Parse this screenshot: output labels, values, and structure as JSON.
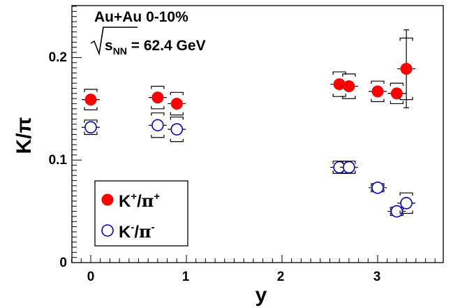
{
  "chart_data": {
    "type": "scatter",
    "xlabel": "y",
    "ylabel": "K/π",
    "xlim": [
      -0.2,
      3.8
    ],
    "ylim": [
      0,
      0.25
    ],
    "x_ticks": [
      {
        "value": 0,
        "label": "0"
      },
      {
        "value": 1,
        "label": "1"
      },
      {
        "value": 2,
        "label": "2"
      },
      {
        "value": 3,
        "label": "3"
      }
    ],
    "y_ticks": [
      {
        "value": 0,
        "label": "0"
      },
      {
        "value": 0.1,
        "label": "0.1"
      },
      {
        "value": 0.2,
        "label": "0.2"
      }
    ],
    "annotation": {
      "line1": "Au+Au 0-10%",
      "sqrt_s": "s",
      "sqrt_sub": "NN",
      "energy": " = 62.4 GeV"
    },
    "legend_position": "bottom-left",
    "series": [
      {
        "name": "K+/π+",
        "legend": {
          "base": "K",
          "sup1": "+",
          "sep": "/",
          "pi": "π",
          "sup2": "+"
        },
        "marker": "filled-circle",
        "color": "#ff0000",
        "x": [
          0,
          0.7,
          0.9,
          2.6,
          2.7,
          3.0,
          3.2,
          3.3
        ],
        "y": [
          0.159,
          0.161,
          0.155,
          0.174,
          0.172,
          0.167,
          0.165,
          0.189
        ],
        "stat_err": [
          0.004,
          0.004,
          0.004,
          0.005,
          0.005,
          0.004,
          0.005,
          0.038
        ],
        "sys_err": [
          0.01,
          0.011,
          0.011,
          0.012,
          0.012,
          0.01,
          0.01,
          0.03
        ]
      },
      {
        "name": "K-/π-",
        "legend": {
          "base": "K",
          "sup1": "-",
          "sep": "/",
          "pi": "π",
          "sup2": "-"
        },
        "marker": "open-circle",
        "color": "#0000cc",
        "x": [
          0,
          0.7,
          0.9,
          2.6,
          2.7,
          3.0,
          3.2,
          3.3
        ],
        "y": [
          0.132,
          0.134,
          0.13,
          0.093,
          0.093,
          0.073,
          0.05,
          0.058
        ],
        "stat_err": [
          0.003,
          0.003,
          0.003,
          0.004,
          0.004,
          0.003,
          0.003,
          0.005
        ],
        "sys_err": [
          0.007,
          0.012,
          0.012,
          0.006,
          0.006,
          0.004,
          0.004,
          0.01
        ]
      }
    ]
  }
}
